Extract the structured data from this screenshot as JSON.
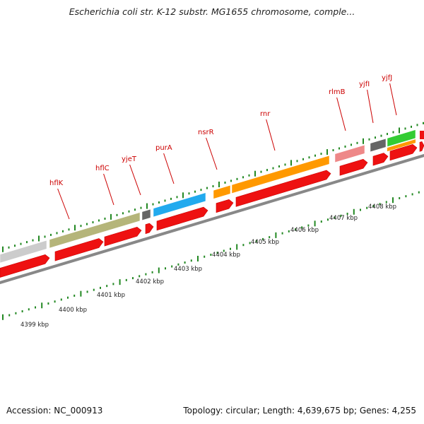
{
  "title": "Escherichia coli str. K-12 substr. MG1655 chromosome, comple...",
  "footer": {
    "accession": "Accession: NC_000913",
    "summary": "Topology: circular; Length: 4,639,675 bp; Genes: 4,255"
  },
  "colors": {
    "strand_arrow": "#ee1111",
    "backbone": "#888888",
    "ticks": "#228822",
    "label": "#cc0000",
    "gray_feature": "#cccccc",
    "olive_feature": "#b5b57a",
    "dark_feature": "#666666",
    "blue_feature": "#22aaee",
    "orange_feature": "#ff9900",
    "pink_feature": "#ee8888",
    "green_feature": "#33cc33"
  },
  "gene_labels": [
    "hflK",
    "hflC",
    "yjeT",
    "purA",
    "nsrR",
    "rnr",
    "rlmB",
    "yjfI",
    "yjfJ"
  ],
  "kbp_labels": [
    "4399 kbp",
    "4400 kbp",
    "4401 kbp",
    "4402 kbp",
    "4403 kbp",
    "4404 kbp",
    "4405 kbp",
    "4406 kbp",
    "4407 kbp",
    "4408 kbp"
  ]
}
